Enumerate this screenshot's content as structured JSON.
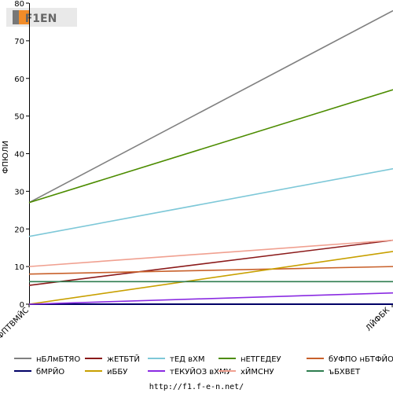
{
  "logo_text": "F1EN",
  "footer_url": "http://f1.f-e-n.net/",
  "chart_data": {
    "type": "line",
    "ylabel": "ФПЮЛИ",
    "categories": [
      "ЙФПТВМЙС",
      "ЛЙФБК"
    ],
    "ylim": [
      0,
      80
    ],
    "yticks": [
      0,
      10,
      20,
      30,
      40,
      50,
      60,
      70,
      80
    ],
    "grid": false,
    "legend_position": "bottom",
    "series": [
      {
        "name": "нБЛмБТЯО",
        "color": "#808080",
        "values": [
          27,
          78
        ]
      },
      {
        "name": "жЕТБТЙ",
        "color": "#8b1a1a",
        "values": [
          5,
          17
        ]
      },
      {
        "name": "тЕД вХМ",
        "color": "#7ec8d8",
        "values": [
          18,
          36
        ]
      },
      {
        "name": "нЕТГЕДЕУ",
        "color": "#4c8c00",
        "values": [
          27,
          57
        ]
      },
      {
        "name": "бУФПО нБТФЙО",
        "color": "#c8602a",
        "values": [
          8,
          10
        ]
      },
      {
        "name": "бМРЙО",
        "color": "#000066",
        "values": [
          0,
          0
        ]
      },
      {
        "name": "иББУ",
        "color": "#c8a000",
        "values": [
          0,
          14
        ]
      },
      {
        "name": "тЕКУЙОЗ вХМУ",
        "color": "#8a2be2",
        "values": [
          0,
          3
        ]
      },
      {
        "name": "хЙМСНУ",
        "color": "#f0a090",
        "values": [
          10,
          17
        ]
      },
      {
        "name": "ъБХВЕТ",
        "color": "#2e7d4f",
        "values": [
          6,
          6
        ]
      }
    ]
  }
}
